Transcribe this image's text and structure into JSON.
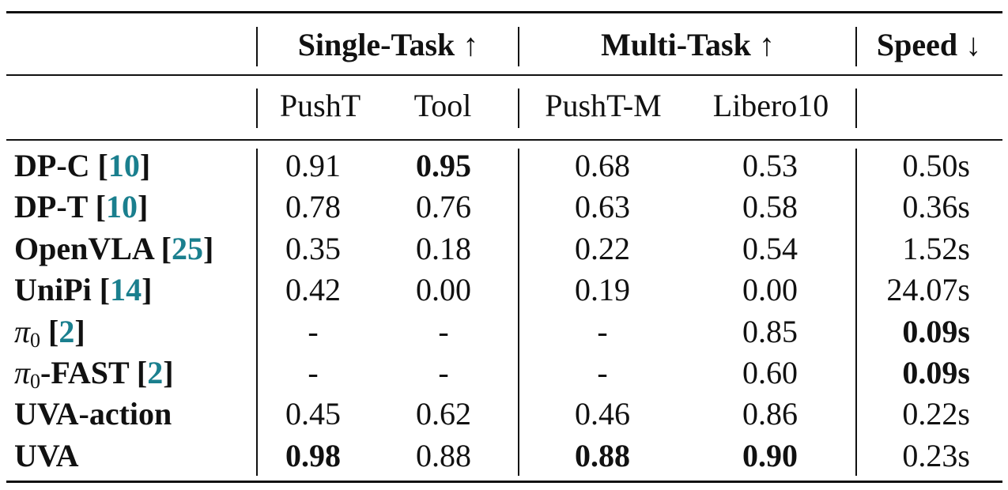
{
  "groups": [
    {
      "label": "Single-Task ↑"
    },
    {
      "label": "Multi-Task ↑"
    },
    {
      "label": "Speed ↓"
    }
  ],
  "columns": [
    "PushT",
    "Tool",
    "PushT-M",
    "Libero10"
  ],
  "rows": [
    {
      "name": "DP-C ",
      "cite": "10",
      "values": [
        "0.91",
        "0.95",
        "0.68",
        "0.53",
        "0.50s"
      ],
      "bold": [
        false,
        true,
        false,
        false,
        false
      ]
    },
    {
      "name": "DP-T ",
      "cite": "10",
      "values": [
        "0.78",
        "0.76",
        "0.63",
        "0.58",
        "0.36s"
      ],
      "bold": [
        false,
        false,
        false,
        false,
        false
      ]
    },
    {
      "name": "OpenVLA ",
      "cite": "25",
      "values": [
        "0.35",
        "0.18",
        "0.22",
        "0.54",
        "1.52s"
      ],
      "bold": [
        false,
        false,
        false,
        false,
        false
      ]
    },
    {
      "name": "UniPi ",
      "cite": "14",
      "values": [
        "0.42",
        "0.00",
        "0.19",
        "0.00",
        "24.07s"
      ],
      "bold": [
        false,
        false,
        false,
        false,
        false
      ]
    },
    {
      "name_symbol": "π",
      "name_sub": "0",
      "name": " ",
      "cite": "2",
      "values": [
        "-",
        "-",
        "-",
        "0.85",
        "0.09s"
      ],
      "bold": [
        false,
        false,
        false,
        false,
        true
      ]
    },
    {
      "name_symbol": "π",
      "name_sub": "0",
      "name": "-FAST ",
      "cite": "2",
      "values": [
        "-",
        "-",
        "-",
        "0.60",
        "0.09s"
      ],
      "bold": [
        false,
        false,
        false,
        false,
        true
      ]
    },
    {
      "name": "UVA-action",
      "values": [
        "0.45",
        "0.62",
        "0.46",
        "0.86",
        "0.22s"
      ],
      "bold": [
        false,
        false,
        false,
        false,
        false
      ]
    },
    {
      "name": "UVA",
      "values": [
        "0.98",
        "0.88",
        "0.88",
        "0.90",
        "0.23s"
      ],
      "bold": [
        true,
        false,
        true,
        true,
        false
      ]
    }
  ]
}
